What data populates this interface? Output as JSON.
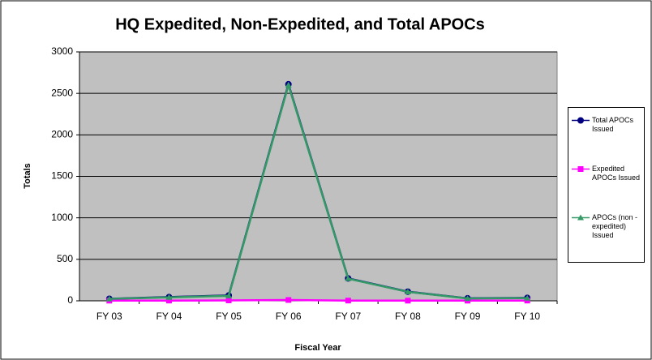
{
  "chart_data": {
    "type": "line",
    "title": "HQ Expedited, Non-Expedited, and Total APOCs",
    "x_label": "Fiscal Year",
    "y_label": "Totals",
    "categories": [
      "FY 03",
      "FY 04",
      "FY 05",
      "FY 06",
      "FY 07",
      "FY 08",
      "FY 09",
      "FY 10"
    ],
    "series": [
      {
        "name": "Total APOCs Issued",
        "color": "#000080",
        "marker": "circle",
        "values": [
          25,
          45,
          65,
          2610,
          270,
          110,
          30,
          35
        ]
      },
      {
        "name": "Expedited APOCs Issued",
        "color": "#ff00ff",
        "marker": "square",
        "values": [
          2,
          3,
          5,
          10,
          3,
          2,
          2,
          3
        ]
      },
      {
        "name": "APOCs (non - expedited) Issued",
        "color": "#339966",
        "marker": "triangle",
        "values": [
          23,
          42,
          60,
          2600,
          267,
          108,
          28,
          32
        ]
      }
    ],
    "ylim": [
      0,
      3000
    ],
    "yticks": [
      0,
      500,
      1000,
      1500,
      2000,
      2500,
      3000
    ],
    "grid": true,
    "legend": "right"
  }
}
